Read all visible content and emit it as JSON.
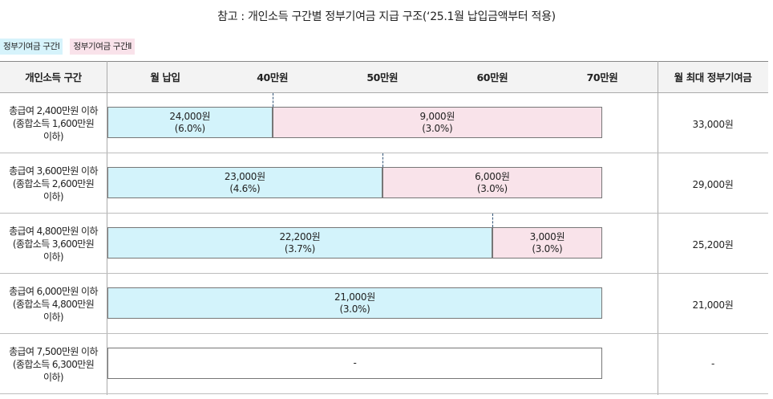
{
  "title": "참고 : 개인소득 구간별 정부기여금 지급 구조(‘25.1월 납입금액부터 적용)",
  "legend": [
    {
      "label": "정부기여금 구간Ⅰ",
      "color": "#d6f3fb"
    },
    {
      "label": "정부기여금 구간Ⅱ",
      "color": "#f9e2ea"
    }
  ],
  "header": {
    "income_col": "개인소득 구간",
    "payment_col": "월 납입",
    "max_col": "월 최대 정부기여금"
  },
  "chart_data": {
    "type": "bar",
    "orientation": "horizontal-stacked",
    "x_ticks": [
      "40만원",
      "50만원",
      "60만원",
      "70만원"
    ],
    "x_tick_values": [
      40,
      50,
      60,
      70
    ],
    "x_unit": "만원",
    "xlim": [
      25,
      70
    ],
    "rows": [
      {
        "income": [
          "총급여 2,400만원 이하",
          "(종합소득 1,600만원",
          "이하)"
        ],
        "max": "33,000원",
        "segments": [
          {
            "tier": 1,
            "from": 25,
            "to": 40,
            "amount": "24,000원",
            "rate": "(6.0%)"
          },
          {
            "tier": 2,
            "from": 40,
            "to": 70,
            "amount": "9,000원",
            "rate": "(3.0%)"
          }
        ]
      },
      {
        "income": [
          "총급여 3,600만원 이하",
          "(종합소득 2,600만원",
          "이하)"
        ],
        "max": "29,000원",
        "segments": [
          {
            "tier": 1,
            "from": 25,
            "to": 50,
            "amount": "23,000원",
            "rate": "(4.6%)"
          },
          {
            "tier": 2,
            "from": 50,
            "to": 70,
            "amount": "6,000원",
            "rate": "(3.0%)"
          }
        ]
      },
      {
        "income": [
          "총급여 4,800만원 이하",
          "(종합소득 3,600만원",
          "이하)"
        ],
        "max": "25,200원",
        "segments": [
          {
            "tier": 1,
            "from": 25,
            "to": 60,
            "amount": "22,200원",
            "rate": "(3.7%)"
          },
          {
            "tier": 2,
            "from": 60,
            "to": 70,
            "amount": "3,000원",
            "rate": "(3.0%)"
          }
        ]
      },
      {
        "income": [
          "총급여 6,000만원 이하",
          "(종합소득 4,800만원",
          "이하)"
        ],
        "max": "21,000원",
        "segments": [
          {
            "tier": 1,
            "from": 25,
            "to": 70,
            "amount": "21,000원",
            "rate": "(3.0%)"
          }
        ]
      },
      {
        "income": [
          "총급여 7,500만원 이하",
          "(종합소득 6,300만원",
          "이하)"
        ],
        "max": "-",
        "segments": [
          {
            "tier": 0,
            "from": 25,
            "to": 70,
            "amount": "-",
            "rate": ""
          }
        ]
      }
    ]
  }
}
